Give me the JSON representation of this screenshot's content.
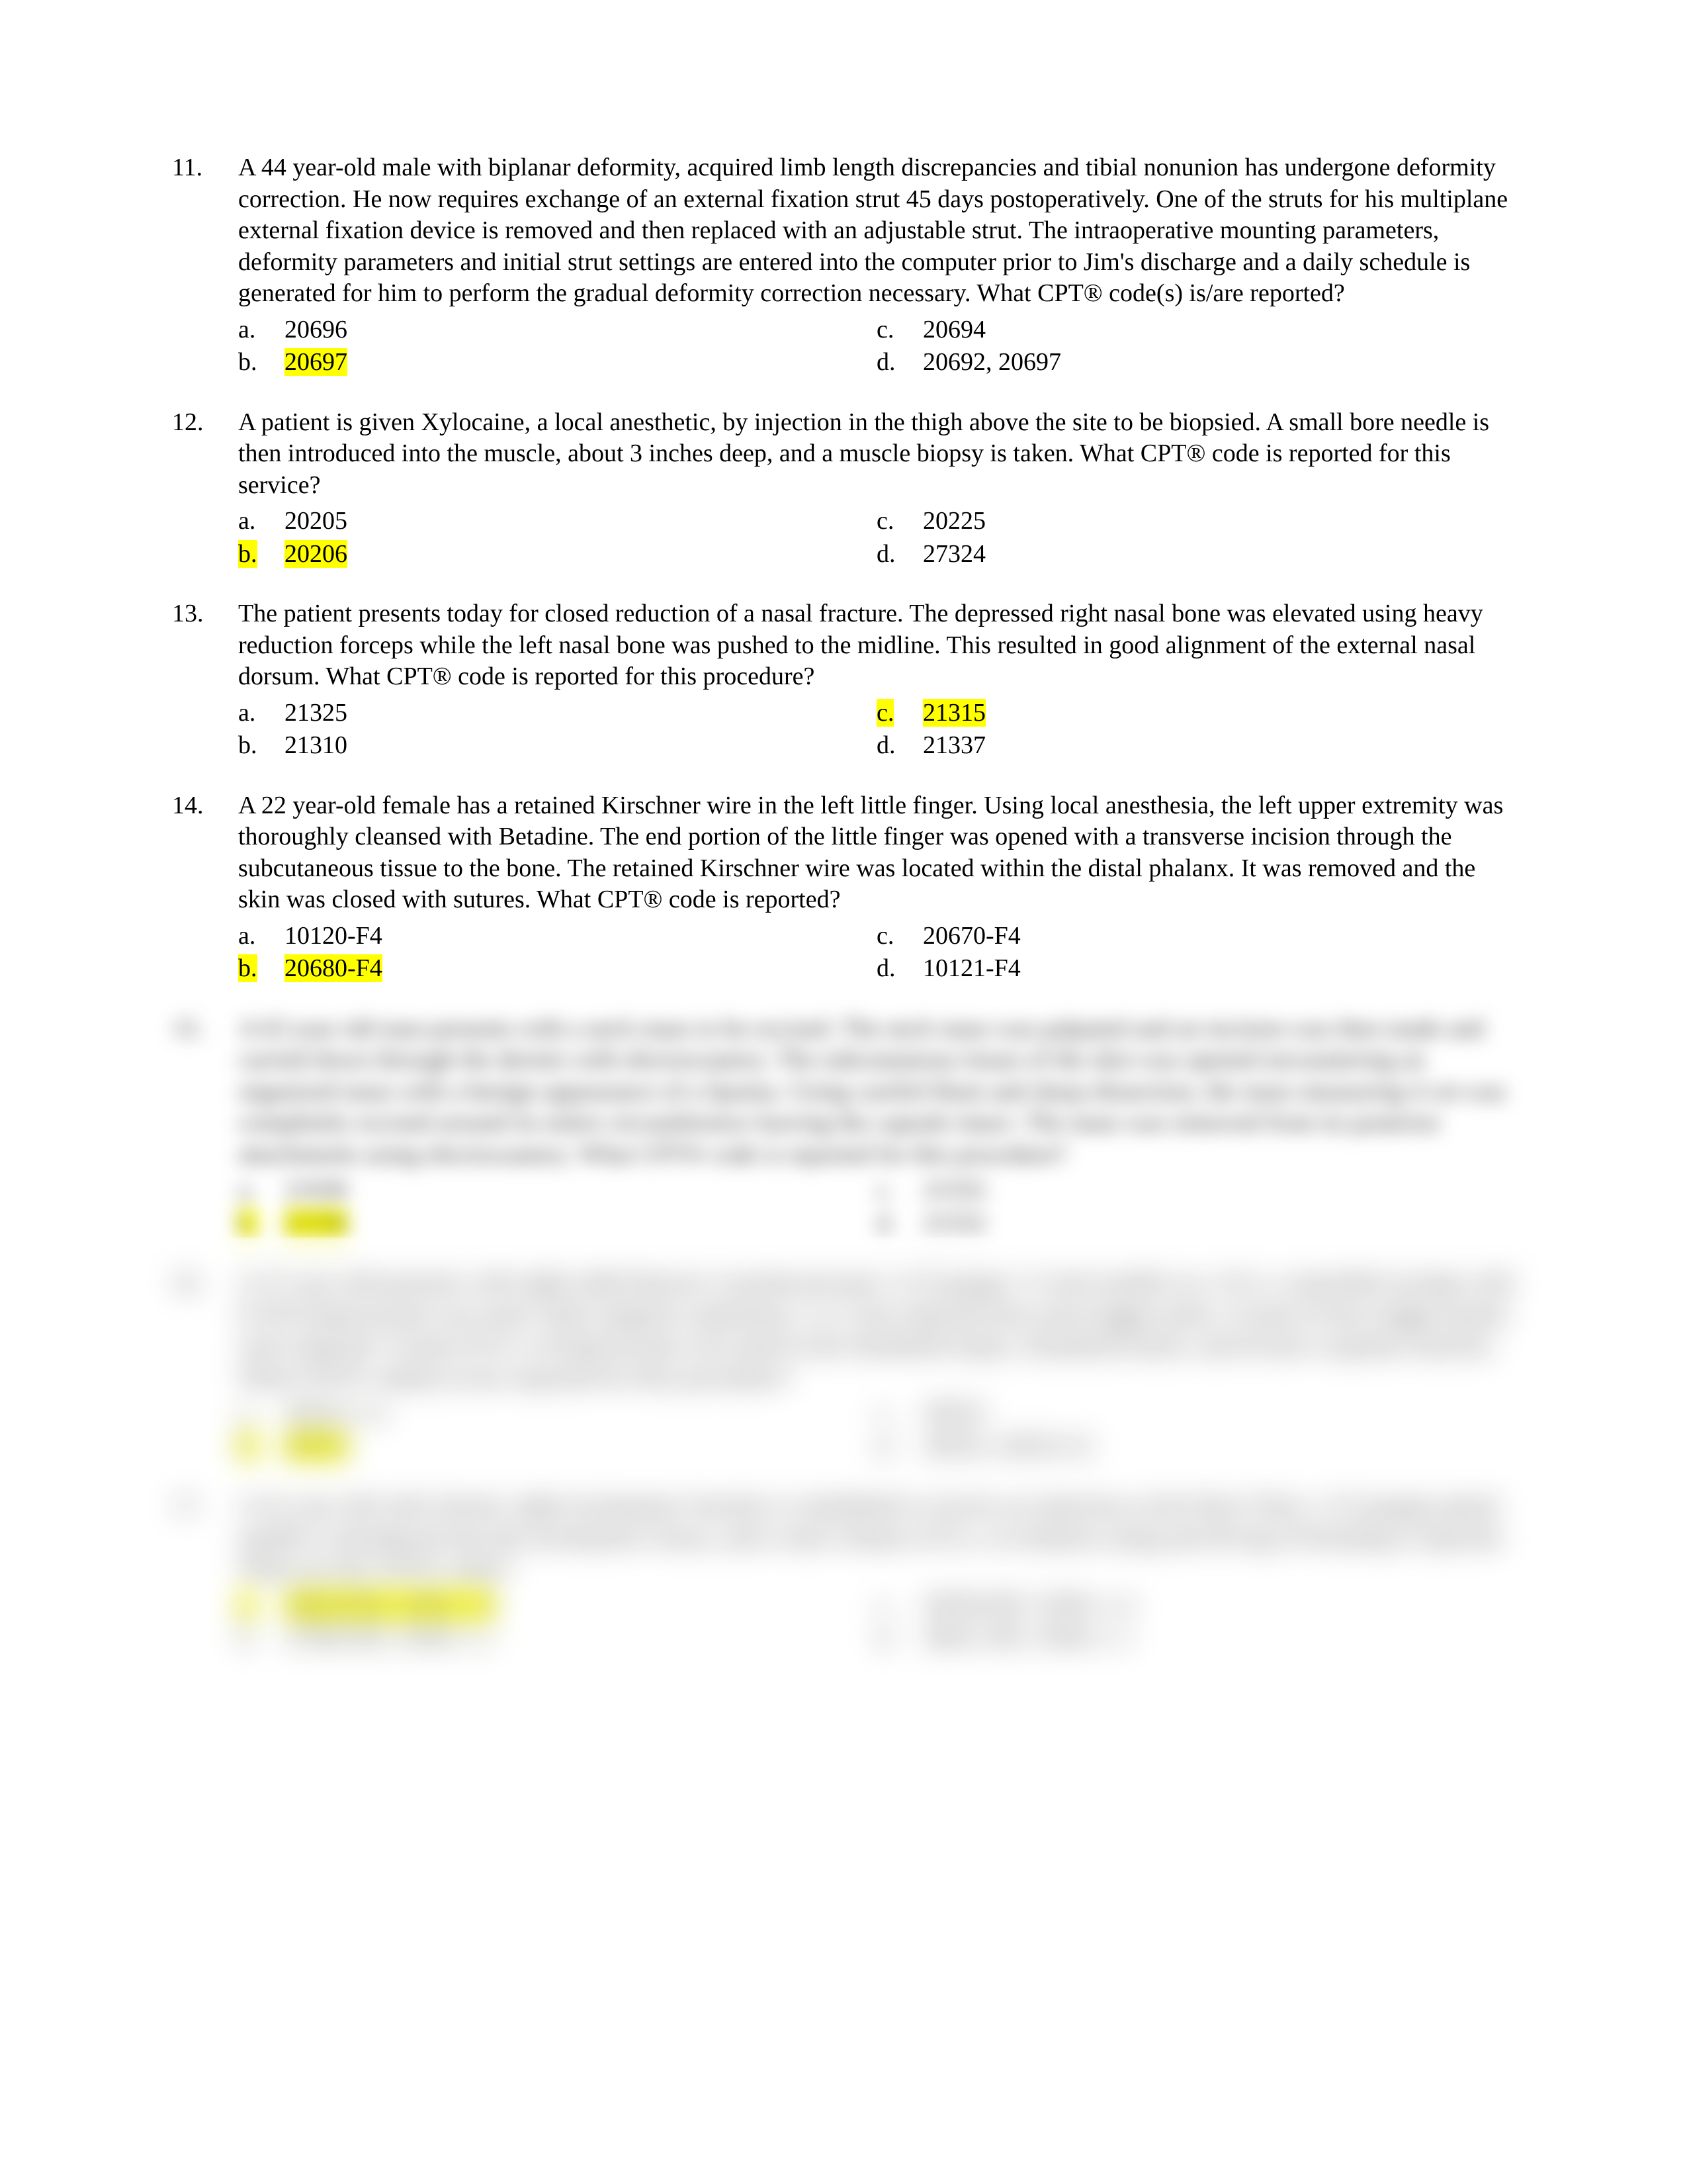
{
  "highlight_color": "#ffff00",
  "text_color": "#000000",
  "background_color": "#ffffff",
  "font_family": "Times New Roman",
  "font_size_pt": 12,
  "questions": [
    {
      "number": "11.",
      "stem": "A 44 year-old male with biplanar deformity, acquired limb length discrepancies and tibial nonunion has undergone deformity correction. He now requires exchange of an external fixation strut 45 days postoperatively. One of the struts for his multiplane external fixation device is removed and then replaced with an adjustable strut. The intraoperative mounting parameters, deformity parameters and initial strut settings are entered into the computer prior to Jim's discharge and a daily schedule is generated for him to perform the gradual deformity correction necessary.  What CPT® code(s) is/are reported?",
      "choices_left": [
        {
          "letter": "a.",
          "text": "20696",
          "hl_letter": false,
          "hl_text": false
        },
        {
          "letter": "b.",
          "text": "20697",
          "hl_letter": false,
          "hl_text": true
        }
      ],
      "choices_right": [
        {
          "letter": "c.",
          "text": "20694",
          "hl_letter": false,
          "hl_text": false
        },
        {
          "letter": "d.",
          "text": "20692, 20697",
          "hl_letter": false,
          "hl_text": false
        }
      ]
    },
    {
      "number": "12.",
      "stem": "A patient is given Xylocaine, a local anesthetic, by injection in the thigh above the site to be biopsied. A small bore needle is then introduced into the muscle, about 3 inches deep, and a muscle biopsy is taken. What CPT® code is reported for this service?",
      "choices_left": [
        {
          "letter": "a.",
          "text": "20205",
          "hl_letter": false,
          "hl_text": false
        },
        {
          "letter": "b.",
          "text": "20206",
          "hl_letter": true,
          "hl_text": true
        }
      ],
      "choices_right": [
        {
          "letter": "c.",
          "text": "20225",
          "hl_letter": false,
          "hl_text": false
        },
        {
          "letter": "d.",
          "text": "27324",
          "hl_letter": false,
          "hl_text": false
        }
      ]
    },
    {
      "number": "13.",
      "stem": "The patient presents today for closed reduction of a nasal fracture. The depressed right nasal bone was elevated using heavy reduction forceps while the left nasal bone was pushed to the midline. This resulted in good alignment of the external nasal dorsum. What CPT® code is reported for this procedure?",
      "choices_left": [
        {
          "letter": "a.",
          "text": "21325",
          "hl_letter": false,
          "hl_text": false
        },
        {
          "letter": "b.",
          "text": "21310",
          "hl_letter": false,
          "hl_text": false
        }
      ],
      "choices_right": [
        {
          "letter": "c.",
          "text": "21315",
          "hl_letter": true,
          "hl_text": true
        },
        {
          "letter": "d.",
          "text": "21337",
          "hl_letter": false,
          "hl_text": false
        }
      ]
    },
    {
      "number": "14.",
      "stem": "A 22 year-old female has a retained Kirschner wire in the left little finger. Using local anesthesia, the left upper extremity was thoroughly cleansed with Betadine. The end portion of the little finger was opened with a transverse incision through the subcutaneous tissue to the bone. The retained Kirschner wire was located within the distal phalanx. It was removed and the skin was closed with sutures.  What CPT® code is reported?",
      "choices_left": [
        {
          "letter": "a.",
          "text": "10120-F4",
          "hl_letter": false,
          "hl_text": false
        },
        {
          "letter": "b.",
          "text": "20680-F4",
          "hl_letter": true,
          "hl_text": true
        }
      ],
      "choices_right": [
        {
          "letter": "c.",
          "text": "20670-F4",
          "hl_letter": false,
          "hl_text": false
        },
        {
          "letter": "d.",
          "text": "10121-F4",
          "hl_letter": false,
          "hl_text": false
        }
      ]
    }
  ],
  "blurred_questions": [
    {
      "number": "15.",
      "stem": "A 63 year old man presents with a neck mass to be excised. The neck mass was palpated and an incision was then made and carried down through the dermis with electrocautery. The subcutaneous tissue of the skin was opened encountering an organized mass with a benign appearance of a lipoma. Using careful blunt and sharp dissection, the mass measuring 4 cm was completely excised around its entire circumference leaving the capsule intact. The mass was removed from its posterior attachments using electrocautery. What CPT® code is reported for this procedure?",
      "choices_left": [
        {
          "letter": "a.",
          "text": "21930",
          "hl_letter": false,
          "hl_text": false
        },
        {
          "letter": "b.",
          "text": "21556",
          "hl_letter": true,
          "hl_text": true
        }
      ],
      "choices_right": [
        {
          "letter": "c.",
          "text": "21555",
          "hl_letter": false,
          "hl_text": false
        },
        {
          "letter": "d.",
          "text": "21552",
          "hl_letter": false,
          "hl_text": false
        }
      ]
    },
    {
      "number": "16.",
      "stem": "A 37 year old presents with right sided thoracic myofascial pain. A 25 gauge 1.5 inch needle on a 10 cc controlled syringe with 0.25% bupivacaine was used. After negative aspiration, 2 cc were injected into each trigger point. A total of four trigger points were injected. A total of 8 cc of bupivacaine was used in the rhomboid major, rhomboid minor, and levator scapulae muscles. What CPT® code(s) is/are reported for this procedure?",
      "choices_left": [
        {
          "letter": "a.",
          "text": "20553 x 4",
          "hl_letter": false,
          "hl_text": false
        },
        {
          "letter": "b.",
          "text": "20553",
          "hl_letter": true,
          "hl_text": true
        }
      ],
      "choices_right": [
        {
          "letter": "c.",
          "text": "20552",
          "hl_letter": false,
          "hl_text": false
        },
        {
          "letter": "d.",
          "text": "20552, 20553-51",
          "hl_letter": false,
          "hl_text": false
        }
      ]
    },
    {
      "number": "17.",
      "stem": "A 41 year old with chronic right trochanteric bursitis is scheduled to receive an injection at the Pain Clinic. A 22 gauge spinal needle is introduced into the trochanteric bursa, and a total volume of 8 cc of solution using and 40 mg of Kenalog is injected. What are the CPT® codes?",
      "choices_left": [
        {
          "letter": "a.",
          "text": "20610-RT, J3301 x 4",
          "hl_letter": true,
          "hl_text": true
        },
        {
          "letter": "b.",
          "text": "27093-RT, J3301 x 1",
          "hl_letter": false,
          "hl_text": false
        }
      ],
      "choices_right": [
        {
          "letter": "c.",
          "text": "20550-RT, J3301 x 4",
          "hl_letter": false,
          "hl_text": false
        },
        {
          "letter": "d.",
          "text": "20611-RT, J3301 x 1",
          "hl_letter": false,
          "hl_text": false
        }
      ]
    }
  ]
}
